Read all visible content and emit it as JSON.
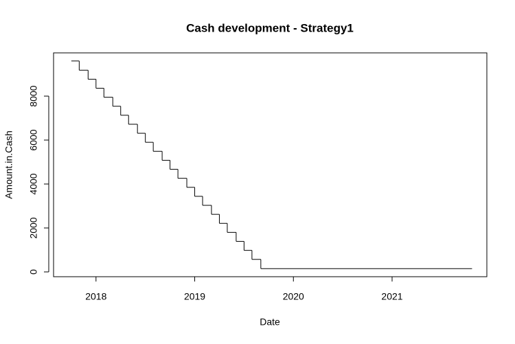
{
  "chart_data": {
    "type": "line",
    "step": "post",
    "title": "Cash development - Strategy1",
    "x_label": "Date",
    "y_label": "Amount.in.Cash",
    "color": "#000000",
    "x": [
      2017.75,
      2017.83,
      2017.92,
      2018.0,
      2018.08,
      2018.17,
      2018.25,
      2018.33,
      2018.42,
      2018.5,
      2018.58,
      2018.67,
      2018.75,
      2018.83,
      2018.92,
      2019.0,
      2019.08,
      2019.17,
      2019.25,
      2019.33,
      2019.42,
      2019.5,
      2019.58,
      2019.67,
      2021.81
    ],
    "values": [
      9600,
      9180,
      8770,
      8360,
      7950,
      7540,
      7130,
      6720,
      6310,
      5900,
      5490,
      5080,
      4670,
      4260,
      3850,
      3440,
      3030,
      2620,
      2210,
      1800,
      1390,
      980,
      570,
      150,
      150
    ],
    "xlim": [
      2017.57,
      2021.96
    ],
    "ylim": [
      -219,
      9969
    ],
    "xticks": [
      2018,
      2019,
      2020,
      2021
    ],
    "yticks": [
      0,
      2000,
      4000,
      6000,
      8000
    ]
  }
}
